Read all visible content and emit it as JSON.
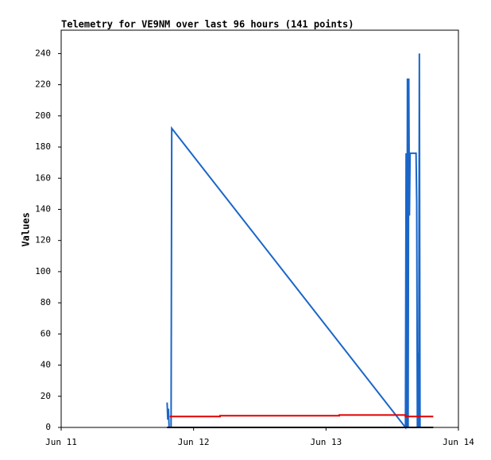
{
  "chart_data": {
    "type": "line",
    "title": "Telemetry for VE9NM over last 96 hours (141 points)",
    "y_label": "Values",
    "xlim": [
      0,
      3
    ],
    "ylim": [
      0,
      255
    ],
    "xticks": [
      {
        "value": 0,
        "label": "Jun 11"
      },
      {
        "value": 1,
        "label": "Jun 12"
      },
      {
        "value": 2,
        "label": "Jun 13"
      },
      {
        "value": 3,
        "label": "Jun 14"
      }
    ],
    "yticks": [
      0,
      20,
      40,
      60,
      80,
      100,
      120,
      140,
      160,
      180,
      200,
      220,
      240
    ],
    "series": [
      {
        "color": "#1a66c8",
        "x": [
          0.8,
          0.805,
          0.81,
          0.815,
          0.83,
          0.835,
          2.6,
          2.605,
          2.61,
          2.615,
          2.62,
          2.625,
          2.63,
          2.635,
          2.68,
          2.685,
          2.69,
          2.695,
          2.7,
          2.705,
          2.71
        ],
        "values": [
          16,
          5,
          12,
          0,
          0,
          192,
          0,
          176,
          0,
          224,
          0,
          224,
          136,
          176,
          176,
          144,
          0,
          48,
          0,
          240,
          0
        ]
      },
      {
        "color": "#e00000",
        "x": [
          0.82,
          1.2,
          1.2,
          2.1,
          2.1,
          2.6,
          2.6,
          2.81
        ],
        "values": [
          7,
          7,
          7.5,
          7.5,
          8,
          8,
          7,
          7
        ]
      },
      {
        "color": "#000000",
        "x": [
          0.8,
          2.81
        ],
        "values": [
          0,
          0
        ]
      }
    ]
  }
}
